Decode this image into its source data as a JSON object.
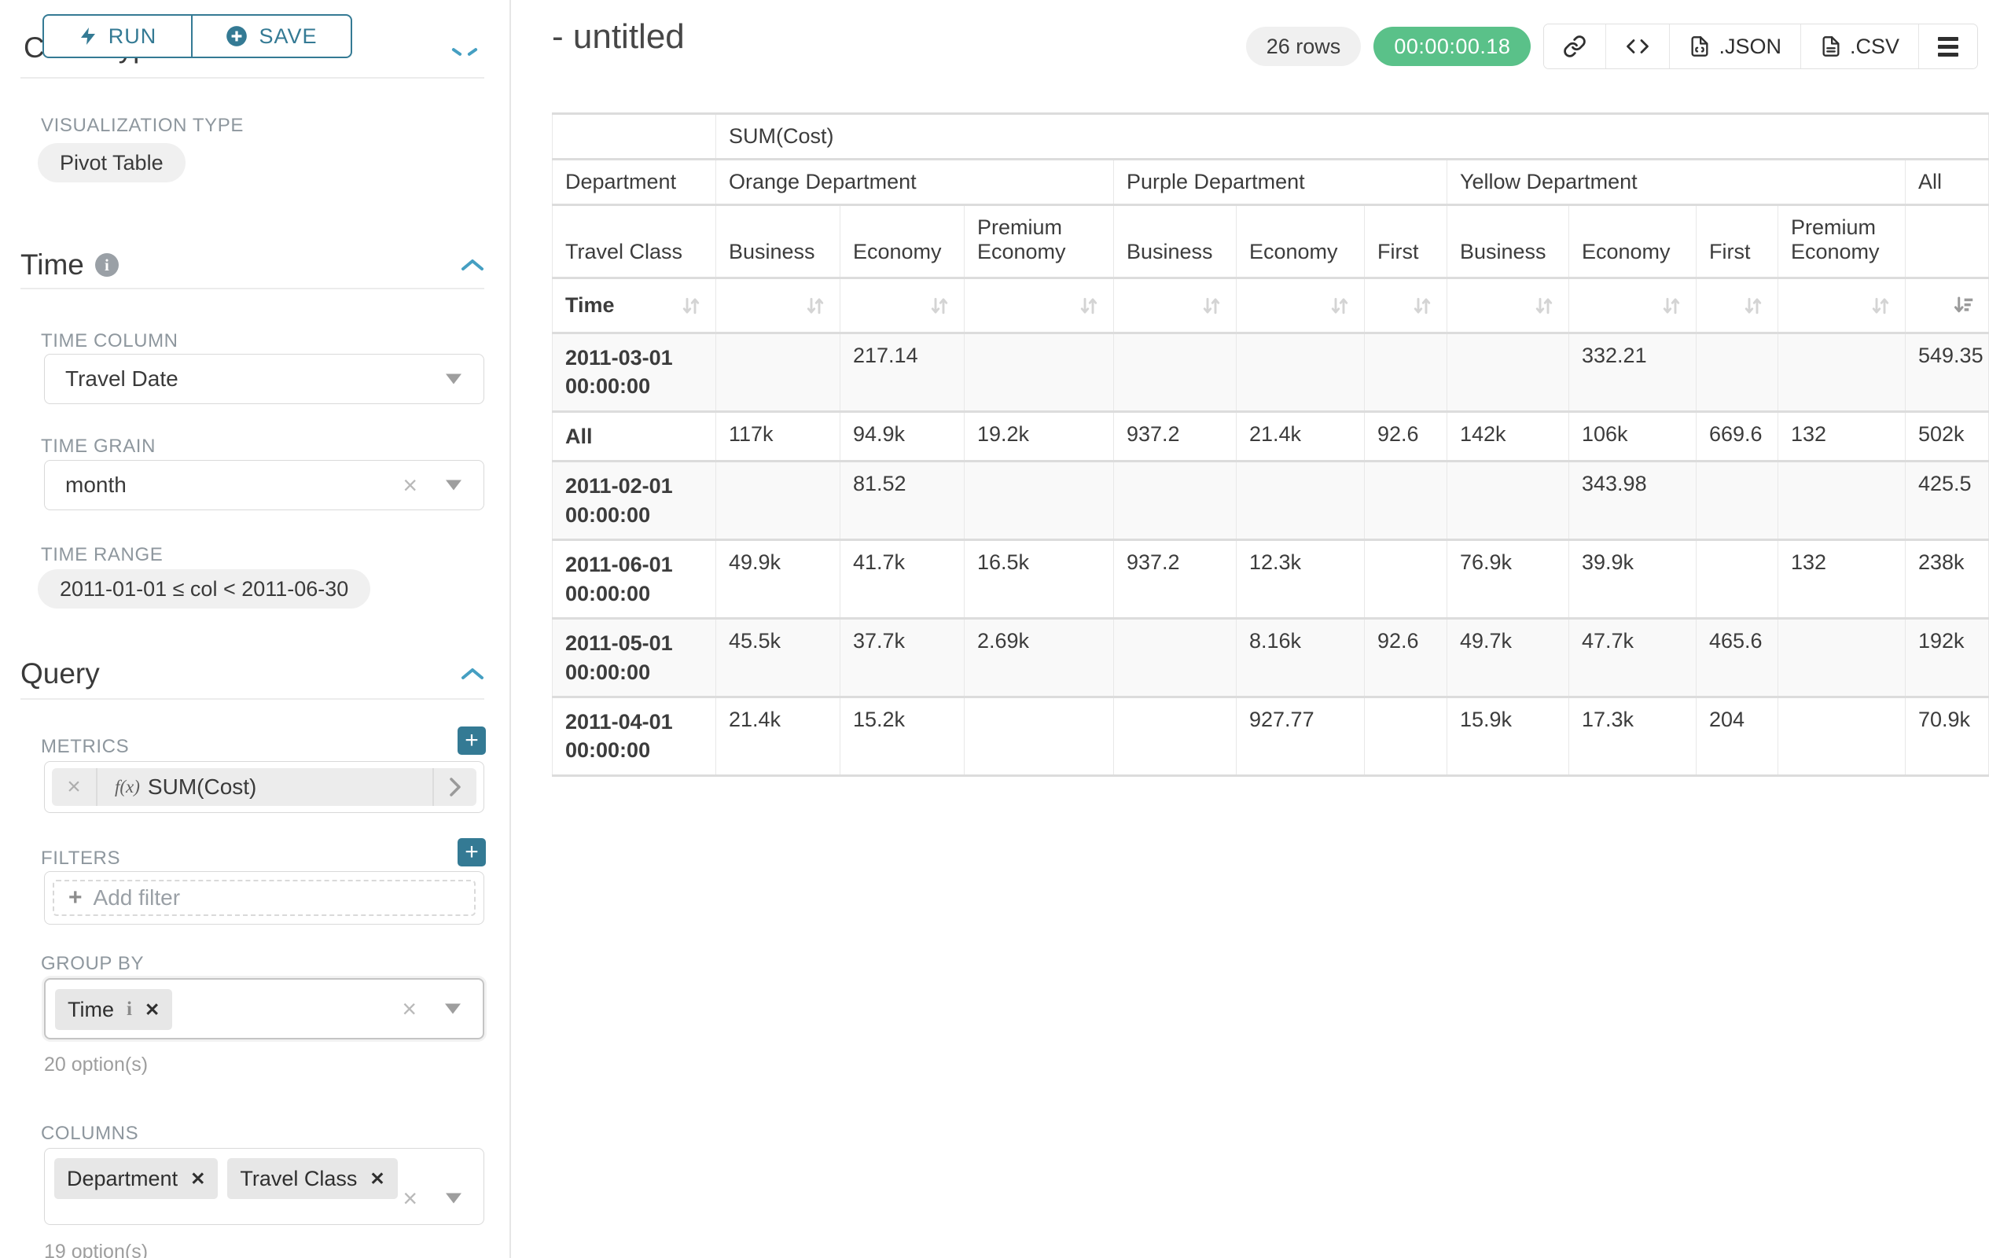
{
  "toolbar": {
    "run_label": "RUN",
    "save_label": "SAVE"
  },
  "sidebar": {
    "chart_type_heading": "Chart Type",
    "visualization": {
      "label": "VISUALIZATION TYPE",
      "value": "Pivot Table"
    },
    "time_section": {
      "title": "Time",
      "time_column_label": "TIME COLUMN",
      "time_column_value": "Travel Date",
      "time_grain_label": "TIME GRAIN",
      "time_grain_value": "month",
      "time_range_label": "TIME RANGE",
      "time_range_value": "2011-01-01 ≤ col < 2011-06-30"
    },
    "query_section": {
      "title": "Query",
      "metrics_label": "METRICS",
      "metric_fx": "f(x)",
      "metric_value": "SUM(Cost)",
      "filters_label": "FILTERS",
      "add_filter_label": "Add filter",
      "group_by_label": "GROUP BY",
      "group_by_tags": [
        "Time"
      ],
      "group_by_options_note": "20 option(s)",
      "columns_label": "COLUMNS",
      "columns_tags": [
        "Department",
        "Travel Class"
      ],
      "columns_options_note": "19 option(s)"
    }
  },
  "header": {
    "title": "- untitled",
    "row_count_badge": "26 rows",
    "query_time_badge": "00:00:00.18",
    "json_button_label": ".JSON",
    "csv_button_label": ".CSV",
    "icons": [
      "link-icon",
      "code-icon",
      "json-file-icon",
      "csv-file-icon",
      "menu-icon"
    ]
  },
  "colors": {
    "accent_teal": "#347a94",
    "chevron_blue": "#459fc2",
    "success_green": "#5ac189"
  },
  "chart_data": {
    "type": "table",
    "metric_header": "SUM(Cost)",
    "department_label": "Department",
    "travel_class_label": "Travel Class",
    "time_label": "Time",
    "column_groups": [
      {
        "name": "Orange Department",
        "classes": [
          "Business",
          "Economy",
          "Premium Economy"
        ]
      },
      {
        "name": "Purple Department",
        "classes": [
          "Business",
          "Economy",
          "First"
        ]
      },
      {
        "name": "Yellow Department",
        "classes": [
          "Business",
          "Economy",
          "First",
          "Premium Economy"
        ]
      },
      {
        "name": "All",
        "classes": [
          ""
        ]
      }
    ],
    "rows": [
      {
        "time": "2011-03-01 00:00:00",
        "values": [
          "",
          "217.14",
          "",
          "",
          "",
          "",
          "",
          "332.21",
          "",
          "",
          "549.35"
        ]
      },
      {
        "time": "All",
        "values": [
          "117k",
          "94.9k",
          "19.2k",
          "937.2",
          "21.4k",
          "92.6",
          "142k",
          "106k",
          "669.6",
          "132",
          "502k"
        ]
      },
      {
        "time": "2011-02-01 00:00:00",
        "values": [
          "",
          "81.52",
          "",
          "",
          "",
          "",
          "",
          "343.98",
          "",
          "",
          "425.5"
        ]
      },
      {
        "time": "2011-06-01 00:00:00",
        "values": [
          "49.9k",
          "41.7k",
          "16.5k",
          "937.2",
          "12.3k",
          "",
          "76.9k",
          "39.9k",
          "",
          "132",
          "238k"
        ]
      },
      {
        "time": "2011-05-01 00:00:00",
        "values": [
          "45.5k",
          "37.7k",
          "2.69k",
          "",
          "8.16k",
          "92.6",
          "49.7k",
          "47.7k",
          "465.6",
          "",
          "192k"
        ]
      },
      {
        "time": "2011-04-01 00:00:00",
        "values": [
          "21.4k",
          "15.2k",
          "",
          "",
          "927.77",
          "",
          "15.9k",
          "17.3k",
          "204",
          "",
          "70.9k"
        ]
      }
    ],
    "sorted_column": "All",
    "sort_direction": "desc"
  }
}
